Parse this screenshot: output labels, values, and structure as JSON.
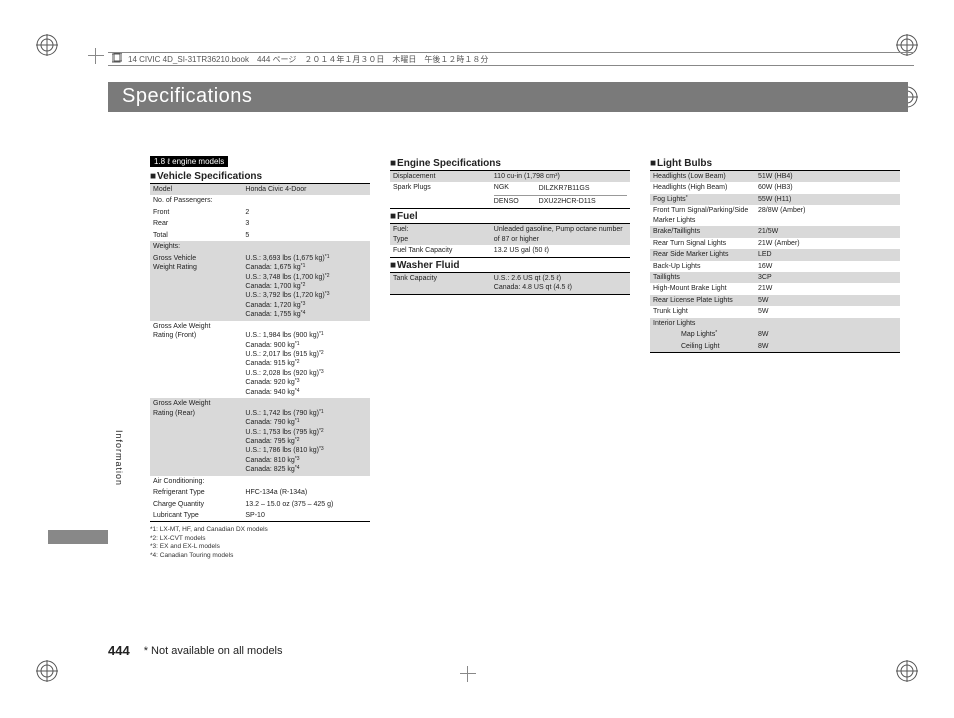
{
  "header": {
    "text": "14 CIVIC 4D_SI-31TR36210.book　444 ページ　２０１４年１月３０日　木曜日　午後１２時１８分"
  },
  "title": "Specifications",
  "side_label": "Information",
  "badge": "1.8 ℓ engine models",
  "page_number": "444",
  "footer_note": "* Not available on all models",
  "vehicle_spec": {
    "title": "Vehicle Specifications",
    "rows": [
      {
        "shaded": true,
        "label": "Model",
        "value": "Honda Civic 4-Door"
      },
      {
        "shaded": false,
        "label": "No. of Passengers:",
        "value": ""
      },
      {
        "shaded": false,
        "label": "Front",
        "value": "2"
      },
      {
        "shaded": false,
        "label": "Rear",
        "value": "3"
      },
      {
        "shaded": false,
        "label": "Total",
        "value": "5"
      },
      {
        "shaded": true,
        "label": "Weights:",
        "value": ""
      },
      {
        "shaded": true,
        "label": "Gross Vehicle<br>Weight Rating",
        "value": "U.S.: 3,693 lbs (1,675 kg)<sup>*1</sup><br>Canada: 1,675 kg<sup>*1</sup><br>U.S.: 3,748 lbs (1,700 kg)<sup>*2</sup><br>Canada: 1,700 kg<sup>*2</sup><br>U.S.: 3,792 lbs (1,720 kg)<sup>*3</sup><br>Canada: 1,720 kg<sup>*3</sup><br>Canada: 1,755 kg<sup>*4</sup>"
      },
      {
        "shaded": false,
        "label": "Gross Axle Weight<br>Rating (Front)",
        "value": "<br>U.S.: 1,984 lbs (900 kg)<sup>*1</sup><br>Canada: 900 kg<sup>*1</sup><br>U.S.: 2,017 lbs (915 kg)<sup>*2</sup><br>Canada: 915 kg<sup>*2</sup><br>U.S.: 2,028 lbs (920 kg)<sup>*3</sup><br>Canada: 920 kg<sup>*3</sup><br>Canada: 940 kg<sup>*4</sup>"
      },
      {
        "shaded": true,
        "label": "Gross Axle Weight<br>Rating (Rear)",
        "value": "<br>U.S.: 1,742 lbs (790 kg)<sup>*1</sup><br>Canada: 790 kg<sup>*1</sup><br>U.S.: 1,753 lbs (795 kg)<sup>*2</sup><br>Canada: 795 kg<sup>*2</sup><br>U.S.: 1,786 lbs (810 kg)<sup>*3</sup><br>Canada: 810 kg<sup>*3</sup><br>Canada: 825 kg<sup>*4</sup>"
      },
      {
        "shaded": false,
        "label": "Air Conditioning:",
        "value": ""
      },
      {
        "shaded": false,
        "label": "Refrigerant Type",
        "value": "HFC-134a (R-134a)"
      },
      {
        "shaded": false,
        "label": "Charge Quantity",
        "value": "13.2 – 15.0 oz (375 – 425 g)"
      },
      {
        "shaded": false,
        "label": "Lubricant Type",
        "value": "SP-10"
      }
    ],
    "footnotes": "*1: LX-MT, HF, and Canadian DX models<br>*2: LX-CVT models<br>*3: EX and EX-L models<br>*4: Canadian Touring models"
  },
  "engine_spec": {
    "title": "Engine Specifications",
    "rows": [
      {
        "shaded": true,
        "label": "Displacement",
        "value": "110 cu-in (1,798 cm³)"
      },
      {
        "shaded": false,
        "label": "Spark Plugs",
        "value": "<table style='width:100%;border-collapse:collapse'><tr><td style='border-bottom:1px solid #999;padding:0 4px 1px 0'>NGK</td><td style='border-bottom:1px solid #999'>DILZKR7B11GS</td></tr><tr><td style='padding:1px 4px 0 0'>DENSO</td><td>DXU22HCR-D11S</td></tr></table>"
      }
    ]
  },
  "fuel": {
    "title": "Fuel",
    "rows": [
      {
        "shaded": true,
        "label": "Fuel:<br>Type",
        "value": "Unleaded gasoline, Pump octane number<br>of 87 or higher"
      },
      {
        "shaded": false,
        "label": "Fuel Tank Capacity",
        "value": "13.2 US gal (50 ℓ)"
      }
    ]
  },
  "washer": {
    "title": "Washer Fluid",
    "rows": [
      {
        "shaded": true,
        "label": "Tank Capacity",
        "value": "U.S.: 2.6 US qt (2.5 ℓ)<br>Canada: 4.8 US qt (4.5 ℓ)"
      }
    ]
  },
  "bulbs": {
    "title": "Light Bulbs",
    "rows": [
      {
        "shaded": true,
        "label": "Headlights (Low Beam)",
        "value": "51W (HB4)"
      },
      {
        "shaded": false,
        "label": "Headlights (High Beam)",
        "value": "60W (HB3)"
      },
      {
        "shaded": true,
        "label": "Fog Lights<sup>*</sup>",
        "value": "55W (H11)"
      },
      {
        "shaded": false,
        "label": "Front Turn Signal/Parking/Side<br>Marker Lights",
        "value": "28/8W (Amber)"
      },
      {
        "shaded": true,
        "label": "Brake/Taillights",
        "value": "21/5W"
      },
      {
        "shaded": false,
        "label": "Rear Turn Signal Lights",
        "value": "21W (Amber)"
      },
      {
        "shaded": true,
        "label": "Rear Side Marker Lights",
        "value": "LED"
      },
      {
        "shaded": false,
        "label": "Back-Up Lights",
        "value": "16W"
      },
      {
        "shaded": true,
        "label": "Taillights",
        "value": "3CP"
      },
      {
        "shaded": false,
        "label": "High-Mount Brake Light",
        "value": "21W"
      },
      {
        "shaded": true,
        "label": "Rear License Plate Lights",
        "value": "5W"
      },
      {
        "shaded": false,
        "label": "Trunk Light",
        "value": "5W"
      },
      {
        "shaded": true,
        "label": "Interior Lights",
        "value": ""
      },
      {
        "shaded": true,
        "label": "　　　　Map Lights<sup>*</sup>",
        "value": "8W"
      },
      {
        "shaded": true,
        "label": "　　　　Ceiling Light",
        "value": "8W"
      }
    ]
  }
}
